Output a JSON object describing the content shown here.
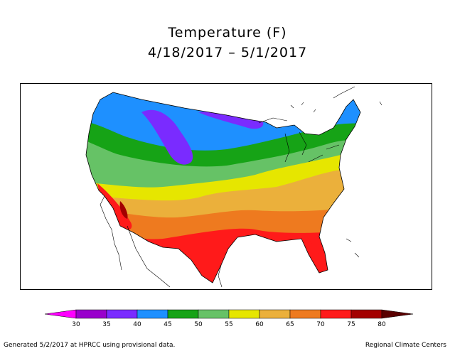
{
  "title": "Temperature (F)",
  "date_range": "4/18/2017 – 5/1/2017",
  "legend": {
    "ticks": [
      "30",
      "35",
      "40",
      "45",
      "50",
      "55",
      "60",
      "65",
      "70",
      "75",
      "80"
    ],
    "colors": [
      "#ff00ff",
      "#9900cc",
      "#7a2bff",
      "#1e90ff",
      "#16a316",
      "#66c266",
      "#e6e600",
      "#ebb03b",
      "#ee7a1f",
      "#ff1a1a",
      "#a30000",
      "#5a0000"
    ]
  },
  "footer": {
    "left": "Generated 5/2/2017 at HPRCC using provisional data.",
    "right": "Regional Climate Centers"
  }
}
